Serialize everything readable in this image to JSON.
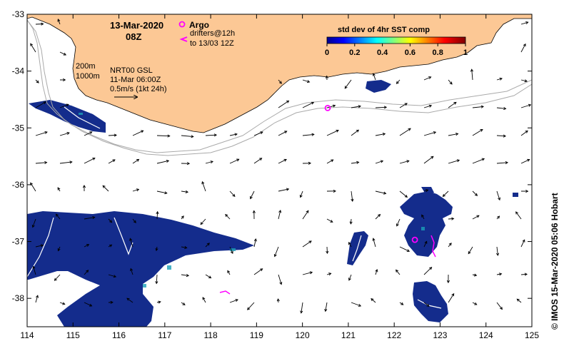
{
  "map": {
    "date": "13-Mar-2020",
    "hour": "08Z",
    "argo_label": "Argo",
    "drifter_line1": "drifters@12h",
    "drifter_line2": "to 13/03 12Z",
    "isobath1": "200m",
    "isobath2": "1000m",
    "product": "NRT00 GSL",
    "product_time": "11-Mar 06:00Z",
    "scale_label": "0.5m/s (1kt 24h)",
    "credit": "© IMOS 15-Mar-2020 05:06 Hobart",
    "colorbar_title": "std dev of 4hr SST comp",
    "colorbar_ticks": [
      "0",
      "0.2",
      "0.4",
      "0.6",
      "0.8",
      "1"
    ],
    "colors": {
      "land": "#fcc895",
      "argo": "#ff00ff",
      "data_patch": "#142c8c",
      "isobath": "#aaaaaa"
    }
  },
  "chart_data": {
    "type": "map",
    "x_ticks": [
      "114",
      "115",
      "116",
      "117",
      "118",
      "119",
      "120",
      "121",
      "122",
      "123",
      "124",
      "125"
    ],
    "y_ticks": [
      "-33",
      "-34",
      "-35",
      "-36",
      "-37",
      "-38"
    ],
    "xlim": [
      114,
      125
    ],
    "ylim": [
      -38.5,
      -33
    ],
    "argo_floats": [
      {
        "lon": 120.55,
        "lat": -34.65
      },
      {
        "lon": 122.45,
        "lat": -36.97
      }
    ]
  }
}
